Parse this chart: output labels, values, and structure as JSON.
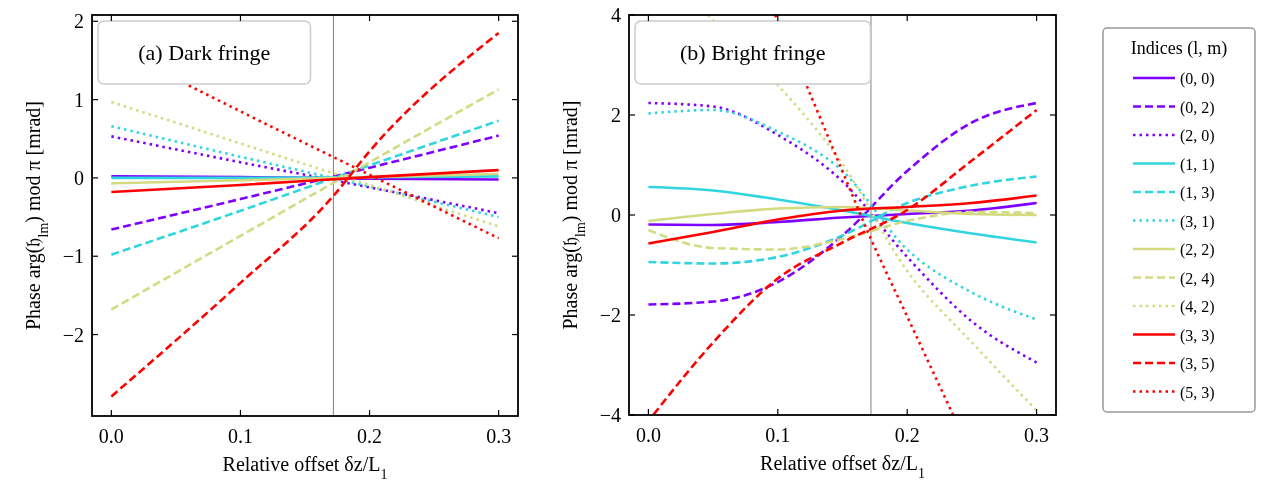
{
  "chart_data": [
    {
      "type": "line",
      "title": "(a) Dark fringe",
      "xlabel": "Relative offset δz/L$_{1}$",
      "ylabel": "Phase arg(𝔥$_{lm}$) mod π  [mrad]",
      "x": [
        0,
        0.1,
        0.2,
        0.3
      ],
      "xlim": [
        -0.015,
        0.315
      ],
      "ylim": [
        -3.04,
        2.08
      ],
      "xticks": [
        {
          "value": 0,
          "label": "0.0"
        },
        0.1,
        0.2,
        0.3
      ],
      "yticks": [
        {
          "value": -2,
          "label": "−2"
        },
        {
          "value": -1,
          "label": "−1"
        },
        0,
        1,
        2
      ],
      "ref_lines": [
        {
          "axis": "x",
          "value": 0.172,
          "color": "#808080"
        }
      ],
      "series": [
        {
          "color": "#7f00ff",
          "line_style": "solid",
          "values": [
            0.02,
            0.01,
            -0.01,
            -0.02
          ]
        },
        {
          "color": "#7f00ff",
          "line_style": "dashed",
          "values": [
            -0.66,
            -0.27,
            0.13,
            0.54
          ]
        },
        {
          "color": "#7f00ff",
          "line_style": "dotted",
          "values": [
            0.53,
            0.2,
            -0.12,
            -0.45
          ]
        },
        {
          "color": "#30d5e0",
          "line_style": "solid",
          "values": [
            0.0,
            0.0,
            0.01,
            0.02
          ]
        },
        {
          "color": "#30d5e0",
          "line_style": "dashed",
          "values": [
            -0.98,
            -0.42,
            0.16,
            0.73
          ]
        },
        {
          "color": "#30d5e0",
          "line_style": "dotted",
          "values": [
            0.66,
            0.27,
            -0.11,
            -0.5
          ]
        },
        {
          "color": "#d3db80",
          "line_style": "solid",
          "values": [
            -0.07,
            -0.03,
            0.01,
            0.05
          ]
        },
        {
          "color": "#d3db80",
          "line_style": "dashed",
          "values": [
            -1.68,
            -0.74,
            0.2,
            1.13
          ]
        },
        {
          "color": "#d3db80",
          "line_style": "dotted",
          "values": [
            0.97,
            0.44,
            -0.09,
            -0.62
          ]
        },
        {
          "color": "#ff0000",
          "line_style": "solid",
          "values": [
            -0.18,
            -0.09,
            0.01,
            0.1
          ]
        },
        {
          "color": "#ff0000",
          "line_style": "dashed",
          "x": [
            0,
            0.1,
            0.172,
            0.2,
            0.3
          ],
          "values": [
            -2.79,
            -1.34,
            -0.23,
            0.34,
            1.85
          ]
        },
        {
          "color": "#ff0000",
          "line_style": "dotted",
          "x": [
            0.06,
            0.1,
            0.2,
            0.3
          ],
          "values": [
            1.18,
            0.85,
            0.04,
            -0.77
          ]
        }
      ]
    },
    {
      "type": "line",
      "title": "(b) Bright fringe",
      "xlabel": "Relative offset δz/L$_{1}$",
      "ylabel": "Phase arg(𝔥$_{lm}$) mod π  [mrad]",
      "legend": "right",
      "legend_title": "Indices (l, m)",
      "x": [
        0,
        0.05,
        0.1,
        0.15,
        0.2,
        0.25,
        0.3
      ],
      "xlim": [
        -0.015,
        0.315
      ],
      "ylim": [
        -4,
        4
      ],
      "xticks": [
        {
          "value": 0,
          "label": "0.0"
        },
        0.1,
        0.2,
        0.3
      ],
      "yticks": [
        {
          "value": -4,
          "label": "−4"
        },
        {
          "value": -2,
          "label": "−2"
        },
        0,
        2,
        4
      ],
      "ref_lines": [
        {
          "axis": "x",
          "value": 0.172,
          "color": "#808080"
        }
      ],
      "series": [
        {
          "name": "(0, 0)",
          "color": "#7f00ff",
          "line_style": "solid",
          "values": [
            -0.19,
            -0.2,
            -0.14,
            -0.05,
            0.02,
            0.09,
            0.24
          ]
        },
        {
          "name": "(0, 2)",
          "color": "#7f00ff",
          "line_style": "dashed",
          "values": [
            -1.79,
            -1.73,
            -1.34,
            -0.41,
            0.88,
            1.85,
            2.24
          ]
        },
        {
          "name": "(2, 0)",
          "color": "#7f00ff",
          "line_style": "dotted",
          "values": [
            2.24,
            2.17,
            1.6,
            0.67,
            -0.84,
            -2.13,
            -2.95
          ]
        },
        {
          "name": "(1, 1)",
          "color": "#30d5e0",
          "line_style": "solid",
          "values": [
            0.56,
            0.49,
            0.31,
            0.09,
            -0.16,
            -0.37,
            -0.55
          ]
        },
        {
          "name": "(1, 3)",
          "color": "#30d5e0",
          "line_style": "dashed",
          "values": [
            -0.94,
            -0.97,
            -0.84,
            -0.41,
            0.24,
            0.59,
            0.77
          ]
        },
        {
          "name": "(3, 1)",
          "color": "#30d5e0",
          "line_style": "dotted",
          "values": [
            2.03,
            2.1,
            1.67,
            0.88,
            -0.69,
            -1.55,
            -2.09
          ]
        },
        {
          "name": "(2, 2)",
          "color": "#d3db80",
          "line_style": "solid",
          "values": [
            -0.12,
            0.02,
            0.13,
            0.16,
            0.09,
            0.02,
            0.0
          ]
        },
        {
          "name": "(2, 4)",
          "color": "#d3db80",
          "line_style": "dashed",
          "values": [
            -0.3,
            -0.66,
            -0.69,
            -0.48,
            -0.12,
            0.06,
            0.04
          ]
        },
        {
          "name": "(4, 2)",
          "color": "#d3db80",
          "line_style": "dotted",
          "x": [
            0.046,
            0.1,
            0.15,
            0.2,
            0.25,
            0.3
          ],
          "values": [
            4,
            2.6,
            1.02,
            -1.12,
            -2.55,
            -3.91
          ]
        },
        {
          "name": "(3, 3)",
          "color": "#ff0000",
          "line_style": "solid",
          "values": [
            -0.57,
            -0.34,
            -0.09,
            0.09,
            0.16,
            0.24,
            0.39
          ]
        },
        {
          "name": "(3, 5)",
          "color": "#ff0000",
          "line_style": "dashed",
          "x": [
            0.004,
            0.05,
            0.1,
            0.15,
            0.2,
            0.25,
            0.3
          ],
          "values": [
            -3.99,
            -2.55,
            -1.27,
            -0.55,
            0.1,
            1.09,
            2.1
          ]
        },
        {
          "name": "(5, 3)",
          "color": "#ff0000",
          "line_style": "dotted",
          "x": [
            0.098,
            0.122,
            0.15,
            0.172,
            0.2,
            0.2355
          ],
          "values": [
            4,
            2.6,
            0.87,
            -0.48,
            -2.03,
            -4
          ]
        }
      ]
    }
  ]
}
